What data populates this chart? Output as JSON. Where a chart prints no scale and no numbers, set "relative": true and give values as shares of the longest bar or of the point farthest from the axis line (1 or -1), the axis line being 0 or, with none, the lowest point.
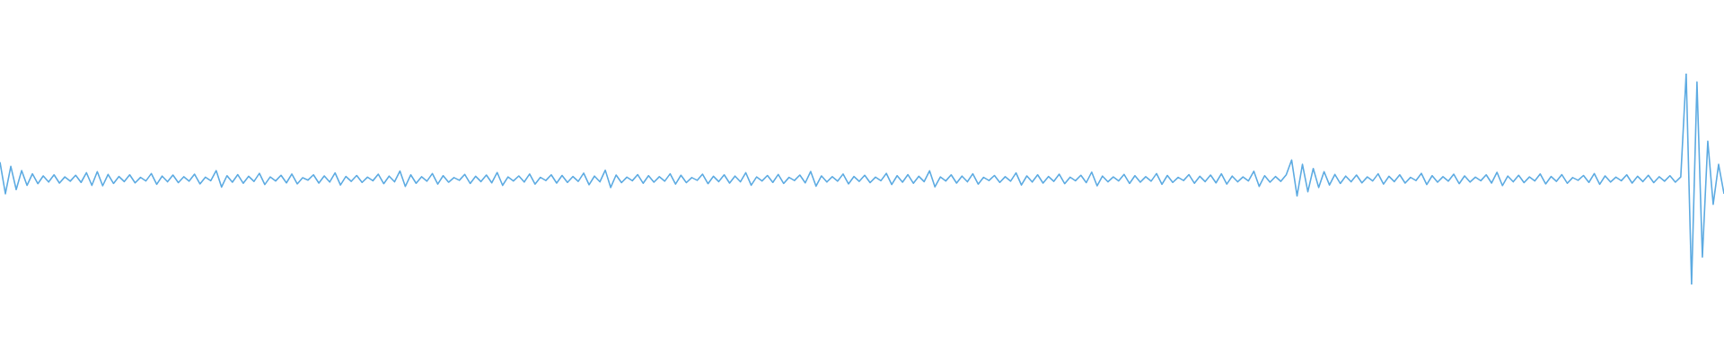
{
  "chart_data": {
    "type": "line",
    "relative": true,
    "color": "#5dabe2",
    "categories": [
      null,
      null,
      null,
      null,
      null,
      null,
      null,
      null,
      null,
      null,
      null,
      null,
      null,
      null,
      null,
      null,
      null,
      null,
      null,
      null,
      null,
      null,
      null,
      null,
      null,
      null,
      null,
      null,
      null,
      null,
      null,
      null,
      null,
      null,
      null,
      null,
      null,
      null,
      null,
      null,
      null,
      null,
      null,
      null,
      null,
      null,
      null,
      null,
      null,
      null,
      null,
      null,
      null,
      null,
      null,
      null,
      null,
      null,
      null,
      null,
      null,
      null,
      null,
      null,
      null,
      null,
      null,
      null,
      null,
      null,
      null,
      null,
      null,
      null,
      null,
      null,
      null,
      null,
      null,
      null,
      null,
      null,
      null,
      null,
      null,
      null,
      null,
      null,
      null,
      null,
      null,
      null,
      null,
      null,
      null,
      null,
      null,
      null,
      null,
      null,
      null,
      null,
      null,
      null,
      null,
      null,
      null,
      null,
      null,
      null,
      null,
      null,
      null,
      null,
      null,
      null,
      null,
      null,
      null,
      null,
      null,
      null,
      null,
      null,
      null,
      null,
      null,
      null,
      null,
      null,
      null,
      null,
      null,
      null,
      null,
      null,
      null,
      null,
      null,
      null,
      null,
      null,
      null,
      null,
      null,
      null,
      null,
      null,
      null,
      null,
      null,
      null,
      null,
      null,
      null,
      null,
      null,
      null,
      null,
      null,
      null,
      null,
      null,
      null,
      null,
      null,
      null,
      null,
      null,
      null,
      null,
      null,
      null,
      null,
      null,
      null,
      null,
      null,
      null,
      null,
      null,
      null,
      null,
      null,
      null,
      null,
      null,
      null,
      null,
      null,
      null,
      null,
      null,
      null,
      null,
      null,
      null,
      null,
      null,
      null,
      null,
      null,
      null,
      null,
      null,
      null,
      null,
      null,
      null,
      null,
      null,
      null,
      null,
      null,
      null,
      null,
      null,
      null,
      null,
      null,
      null,
      null,
      null,
      null,
      null,
      null,
      null,
      null,
      null,
      null,
      null,
      null,
      null,
      null,
      null,
      null,
      null,
      null,
      null,
      null,
      null,
      null,
      null,
      null,
      null,
      null,
      null,
      null,
      null,
      null,
      null,
      null,
      null,
      null,
      null,
      null,
      null,
      null,
      null,
      null,
      null,
      null,
      null,
      null,
      null,
      null,
      null,
      null,
      null,
      null,
      null,
      null,
      null,
      null,
      null,
      null,
      null,
      null,
      null,
      null,
      null,
      null,
      null,
      null,
      null,
      null,
      null,
      null,
      null,
      null,
      null,
      null,
      null,
      null,
      null,
      null,
      null,
      null,
      null,
      null,
      null,
      null,
      null,
      null,
      null,
      null,
      null,
      null,
      null,
      null,
      null,
      null,
      null,
      null,
      null,
      null,
      null,
      null,
      null,
      null
    ],
    "values": [
      0.58,
      0.43,
      0.56,
      0.45,
      0.54,
      0.47,
      0.525,
      0.478,
      0.515,
      0.486,
      0.52,
      0.481,
      0.51,
      0.49,
      0.518,
      0.484,
      0.53,
      0.47,
      0.535,
      0.468,
      0.522,
      0.479,
      0.512,
      0.488,
      0.52,
      0.482,
      0.508,
      0.491,
      0.526,
      0.475,
      0.514,
      0.487,
      0.519,
      0.483,
      0.511,
      0.49,
      0.523,
      0.477,
      0.509,
      0.492,
      0.54,
      0.462,
      0.516,
      0.485,
      0.521,
      0.48,
      0.513,
      0.489,
      0.527,
      0.474,
      0.51,
      0.491,
      0.518,
      0.482,
      0.524,
      0.477,
      0.506,
      0.495,
      0.52,
      0.481,
      0.515,
      0.486,
      0.529,
      0.472,
      0.512,
      0.489,
      0.517,
      0.484,
      0.509,
      0.492,
      0.523,
      0.478,
      0.514,
      0.487,
      0.538,
      0.465,
      0.52,
      0.48,
      0.511,
      0.49,
      0.526,
      0.476,
      0.516,
      0.485,
      0.507,
      0.494,
      0.522,
      0.479,
      0.513,
      0.488,
      0.519,
      0.482,
      0.531,
      0.47,
      0.51,
      0.491,
      0.515,
      0.486,
      0.524,
      0.476,
      0.508,
      0.493,
      0.52,
      0.481,
      0.517,
      0.484,
      0.512,
      0.489,
      0.528,
      0.473,
      0.514,
      0.487,
      0.542,
      0.46,
      0.519,
      0.483,
      0.509,
      0.492,
      0.521,
      0.48,
      0.516,
      0.485,
      0.511,
      0.49,
      0.525,
      0.476,
      0.518,
      0.483,
      0.507,
      0.494,
      0.523,
      0.478,
      0.513,
      0.488,
      0.52,
      0.481,
      0.514,
      0.487,
      0.53,
      0.471,
      0.51,
      0.491,
      0.517,
      0.484,
      0.522,
      0.479,
      0.508,
      0.493,
      0.519,
      0.482,
      0.536,
      0.466,
      0.515,
      0.486,
      0.511,
      0.49,
      0.524,
      0.477,
      0.512,
      0.489,
      0.518,
      0.483,
      0.509,
      0.492,
      0.527,
      0.474,
      0.516,
      0.485,
      0.521,
      0.48,
      0.513,
      0.488,
      0.539,
      0.463,
      0.51,
      0.491,
      0.52,
      0.481,
      0.514,
      0.487,
      0.525,
      0.476,
      0.508,
      0.493,
      0.517,
      0.484,
      0.511,
      0.49,
      0.529,
      0.472,
      0.515,
      0.486,
      0.52,
      0.481,
      0.512,
      0.489,
      0.523,
      0.478,
      0.509,
      0.492,
      0.518,
      0.483,
      0.533,
      0.468,
      0.514,
      0.487,
      0.51,
      0.491,
      0.522,
      0.479,
      0.516,
      0.485,
      0.511,
      0.49,
      0.526,
      0.475,
      0.517,
      0.484,
      0.508,
      0.493,
      0.521,
      0.48,
      0.513,
      0.488,
      0.519,
      0.482,
      0.525,
      0.476,
      0.514,
      0.487,
      0.51,
      0.491,
      0.537,
      0.465,
      0.516,
      0.485,
      0.512,
      0.489,
      0.52,
      0.59,
      0.42,
      0.57,
      0.44,
      0.55,
      0.46,
      0.535,
      0.472,
      0.522,
      0.479,
      0.514,
      0.487,
      0.519,
      0.482,
      0.51,
      0.491,
      0.525,
      0.476,
      0.513,
      0.488,
      0.52,
      0.481,
      0.508,
      0.493,
      0.527,
      0.474,
      0.516,
      0.485,
      0.511,
      0.49,
      0.523,
      0.478,
      0.515,
      0.486,
      0.509,
      0.492,
      0.52,
      0.481,
      0.532,
      0.469,
      0.514,
      0.487,
      0.518,
      0.483,
      0.51,
      0.491,
      0.524,
      0.477,
      0.512,
      0.489,
      0.521,
      0.48,
      0.507,
      0.494,
      0.517,
      0.484,
      0.526,
      0.475,
      0.515,
      0.486,
      0.509,
      0.492,
      0.52,
      0.481,
      0.513,
      0.488,
      0.518,
      0.483,
      0.511,
      0.49,
      0.516,
      0.485,
      0.51,
      1,
      0,
      0.96,
      0.13,
      0.68,
      0.38,
      0.57,
      0.43
    ]
  }
}
